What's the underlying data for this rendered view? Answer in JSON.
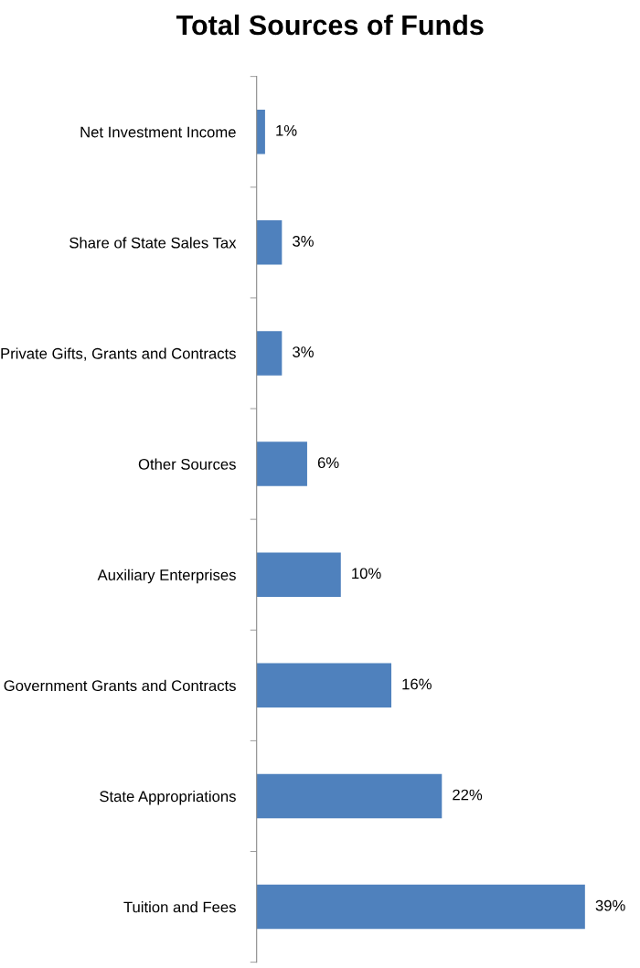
{
  "chart_data": {
    "type": "bar",
    "orientation": "horizontal",
    "title": "Total Sources of Funds",
    "categories": [
      "Net Investment Income",
      "Share of State Sales Tax",
      "Private Gifts, Grants and Contracts",
      "Other Sources",
      "Auxiliary Enterprises",
      "Government Grants and Contracts",
      "State Appropriations",
      "Tuition and Fees"
    ],
    "values": [
      1,
      3,
      3,
      6,
      10,
      16,
      22,
      39
    ],
    "value_labels": [
      "1%",
      "3%",
      "3%",
      "6%",
      "10%",
      "16%",
      "22%",
      "39%"
    ],
    "color": "#4f81bd",
    "grid": false,
    "legend": false
  }
}
